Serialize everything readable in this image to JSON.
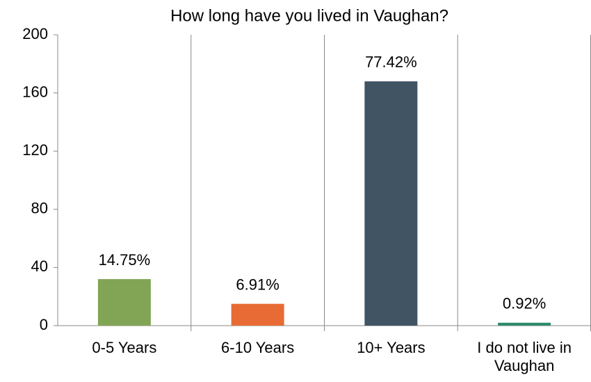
{
  "chart_data": {
    "type": "bar",
    "title": "How long have you lived in Vaughan?",
    "categories": [
      "0-5 Years",
      "6-10 Years",
      "10+ Years",
      "I do not live in\nVaughan"
    ],
    "values": [
      32,
      15,
      168,
      2
    ],
    "data_labels": [
      "14.75%",
      "6.91%",
      "77.42%",
      "0.92%"
    ],
    "colors": [
      "#82a455",
      "#e86b35",
      "#415464",
      "#2e8b6b"
    ],
    "ylim": [
      0,
      200
    ],
    "yticks": [
      0,
      40,
      80,
      120,
      160,
      200
    ],
    "grid": false
  }
}
